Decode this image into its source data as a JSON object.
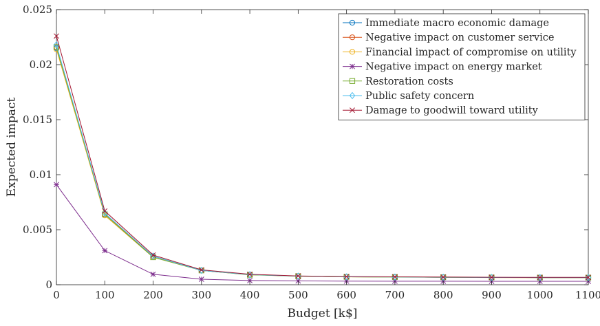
{
  "chart_data": {
    "type": "line",
    "title": "",
    "xlabel": "Budget [k$]",
    "ylabel": "Expected impact",
    "xlim": [
      0,
      1100
    ],
    "ylim": [
      0,
      0.025
    ],
    "xticks": [
      0,
      100,
      200,
      300,
      400,
      500,
      600,
      700,
      800,
      900,
      1000,
      1100
    ],
    "yticks": [
      0,
      0.005,
      0.01,
      0.015,
      0.02,
      0.025
    ],
    "ytick_labels": [
      "0",
      "0.005",
      "0.01",
      "0.015",
      "0.02",
      "0.025"
    ],
    "grid": false,
    "legend_position": "top-right",
    "x": [
      0,
      100,
      200,
      300,
      400,
      500,
      600,
      700,
      800,
      900,
      1000,
      1100
    ],
    "series": [
      {
        "name": "Immediate macro economic damage",
        "color": "#0072BD",
        "marker": "circle",
        "values": [
          0.0215,
          0.0064,
          0.0026,
          0.0013,
          0.00092,
          0.00078,
          0.00072,
          0.0007,
          0.00068,
          0.00066,
          0.00065,
          0.00065
        ]
      },
      {
        "name": "Negative impact on customer service",
        "color": "#D95319",
        "marker": "circle",
        "values": [
          0.0216,
          0.0064,
          0.0026,
          0.0013,
          0.00092,
          0.00078,
          0.00072,
          0.0007,
          0.00068,
          0.00066,
          0.00065,
          0.00065
        ]
      },
      {
        "name": "Financial impact of compromise on utility",
        "color": "#EDB120",
        "marker": "circle",
        "values": [
          0.0214,
          0.0063,
          0.0025,
          0.0013,
          0.0009,
          0.00077,
          0.00071,
          0.00069,
          0.00067,
          0.00065,
          0.00064,
          0.00064
        ]
      },
      {
        "name": "Negative impact on energy market",
        "color": "#7E2F8E",
        "marker": "star",
        "values": [
          0.0091,
          0.0031,
          0.00095,
          0.0005,
          0.00038,
          0.00035,
          0.00033,
          0.00032,
          0.00032,
          0.00031,
          0.00031,
          0.00031
        ]
      },
      {
        "name": "Restoration costs",
        "color": "#77AC30",
        "marker": "square",
        "values": [
          0.0216,
          0.0064,
          0.0025,
          0.0013,
          0.0009,
          0.00078,
          0.00072,
          0.0007,
          0.00068,
          0.00066,
          0.00065,
          0.00065
        ]
      },
      {
        "name": "Public safety concern",
        "color": "#4DBEEE",
        "marker": "diamond",
        "values": [
          0.0218,
          0.0065,
          0.0026,
          0.0013,
          0.00092,
          0.00078,
          0.00072,
          0.0007,
          0.00068,
          0.00066,
          0.00065,
          0.00065
        ]
      },
      {
        "name": "Damage to goodwill toward utility",
        "color": "#A2142F",
        "marker": "x",
        "values": [
          0.0226,
          0.0067,
          0.0027,
          0.00135,
          0.00095,
          0.0008,
          0.00074,
          0.00072,
          0.0007,
          0.00068,
          0.00067,
          0.00067
        ]
      }
    ]
  }
}
